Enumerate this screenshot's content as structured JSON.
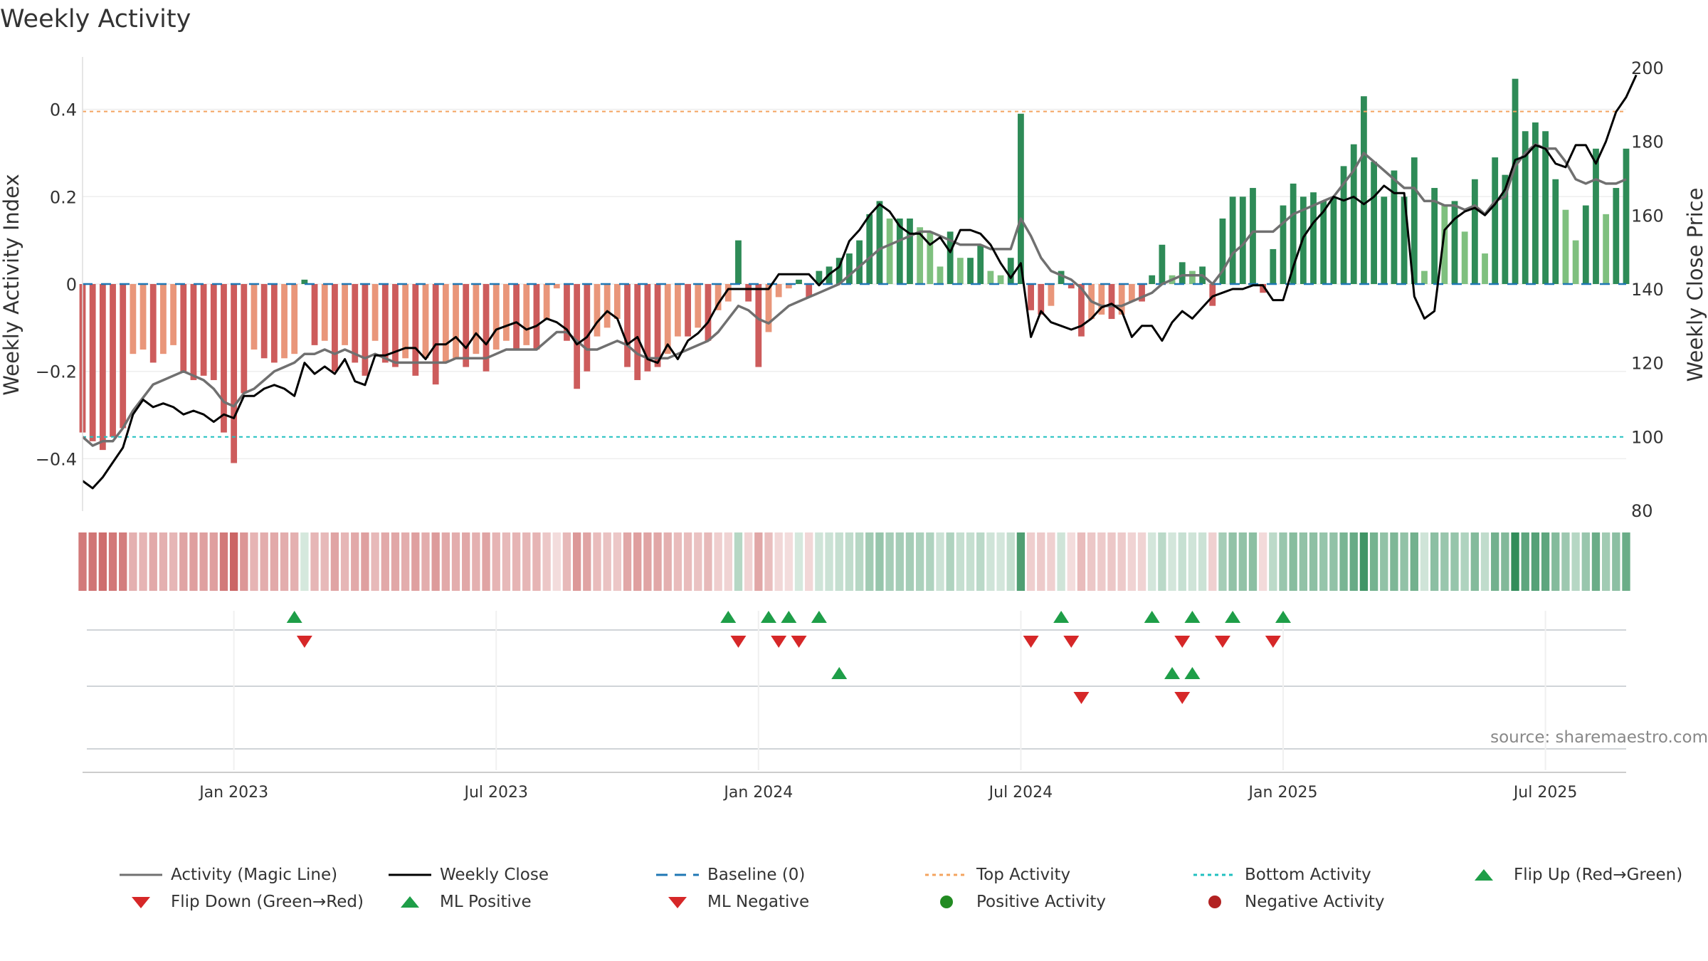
{
  "chart_data": {
    "type": "bar",
    "title": "Weekly Activity",
    "ylabel": "Weekly Activity Index",
    "ylabel_right": "Weekly Close Price",
    "ylim": [
      -0.52,
      0.52
    ],
    "ylim_right": [
      80,
      200
    ],
    "yticks": [
      {
        "v": 0.4,
        "label": "0.4"
      },
      {
        "v": 0.2,
        "label": "0.2"
      },
      {
        "v": 0,
        "label": "0"
      },
      {
        "v": -0.2,
        "label": "−0.2"
      },
      {
        "v": -0.4,
        "label": "−0.4"
      }
    ],
    "yticks_right": [
      {
        "v": 200,
        "label": "200"
      },
      {
        "v": 180,
        "label": "180"
      },
      {
        "v": 160,
        "label": "160"
      },
      {
        "v": 140,
        "label": "140"
      },
      {
        "v": 120,
        "label": "120"
      },
      {
        "v": 100,
        "label": "100"
      },
      {
        "v": 80,
        "label": "80"
      }
    ],
    "x_range_weeks": [
      0,
      153
    ],
    "xticks": [
      {
        "week": 15,
        "label": "Jan 2023"
      },
      {
        "week": 41,
        "label": "Jul 2023"
      },
      {
        "week": 67,
        "label": "Jan 2024"
      },
      {
        "week": 93,
        "label": "Jul 2024"
      },
      {
        "week": 119,
        "label": "Jan 2025"
      },
      {
        "week": 145,
        "label": "Jul 2025"
      }
    ],
    "top_activity": 0.395,
    "bottom_activity": -0.35,
    "baseline": 0,
    "activity": [
      -0.34,
      -0.36,
      -0.38,
      -0.35,
      -0.33,
      -0.16,
      -0.15,
      -0.18,
      -0.16,
      -0.14,
      -0.2,
      -0.22,
      -0.21,
      -0.22,
      -0.34,
      -0.41,
      -0.25,
      -0.15,
      -0.17,
      -0.18,
      -0.17,
      -0.16,
      0.01,
      -0.14,
      -0.13,
      -0.2,
      -0.14,
      -0.18,
      -0.21,
      -0.13,
      -0.18,
      -0.19,
      -0.17,
      -0.21,
      -0.17,
      -0.23,
      -0.18,
      -0.17,
      -0.19,
      -0.16,
      -0.2,
      -0.15,
      -0.13,
      -0.15,
      -0.14,
      -0.15,
      -0.08,
      -0.01,
      -0.13,
      -0.24,
      -0.2,
      -0.12,
      -0.1,
      -0.08,
      -0.19,
      -0.22,
      -0.2,
      -0.19,
      -0.16,
      -0.12,
      -0.12,
      -0.1,
      -0.13,
      -0.06,
      -0.04,
      0.1,
      -0.04,
      -0.19,
      -0.11,
      -0.03,
      -0.01,
      0.01,
      -0.03,
      0.03,
      0.04,
      0.06,
      0.07,
      0.1,
      0.16,
      0.19,
      0.15,
      0.15,
      0.15,
      0.13,
      0.12,
      0.04,
      0.12,
      0.06,
      0.06,
      0.09,
      0.03,
      0.02,
      0.06,
      0.39,
      -0.06,
      -0.07,
      -0.05,
      0.03,
      -0.01,
      -0.12,
      -0.08,
      -0.07,
      -0.08,
      -0.07,
      -0.04,
      -0.04,
      0.02,
      0.09,
      0.02,
      0.05,
      0.03,
      0.04,
      -0.05,
      0.15,
      0.2,
      0.2,
      0.22,
      -0.02,
      0.08,
      0.18,
      0.23,
      0.2,
      0.21,
      0.19,
      0.2,
      0.27,
      0.32,
      0.43,
      0.28,
      0.2,
      0.26,
      0.2,
      0.29,
      0.03,
      0.22,
      0.18,
      0.19,
      0.12,
      0.24,
      0.07,
      0.29,
      0.25,
      0.47,
      0.35,
      0.37,
      0.35,
      0.24,
      0.17,
      0.1,
      0.18,
      0.31,
      0.16,
      0.22,
      0.31
    ],
    "magic_line": [
      -0.35,
      -0.37,
      -0.36,
      -0.36,
      -0.33,
      -0.29,
      -0.26,
      -0.23,
      -0.22,
      -0.21,
      -0.2,
      -0.21,
      -0.22,
      -0.24,
      -0.27,
      -0.28,
      -0.25,
      -0.24,
      -0.22,
      -0.2,
      -0.19,
      -0.18,
      -0.16,
      -0.16,
      -0.15,
      -0.16,
      -0.15,
      -0.16,
      -0.17,
      -0.16,
      -0.17,
      -0.18,
      -0.18,
      -0.18,
      -0.18,
      -0.18,
      -0.18,
      -0.17,
      -0.17,
      -0.17,
      -0.17,
      -0.16,
      -0.15,
      -0.15,
      -0.15,
      -0.15,
      -0.13,
      -0.11,
      -0.11,
      -0.13,
      -0.15,
      -0.15,
      -0.14,
      -0.13,
      -0.14,
      -0.16,
      -0.17,
      -0.17,
      -0.17,
      -0.16,
      -0.15,
      -0.14,
      -0.13,
      -0.11,
      -0.08,
      -0.05,
      -0.06,
      -0.08,
      -0.09,
      -0.07,
      -0.05,
      -0.04,
      -0.03,
      -0.02,
      -0.01,
      0.0,
      0.02,
      0.04,
      0.06,
      0.08,
      0.09,
      0.1,
      0.11,
      0.12,
      0.12,
      0.11,
      0.1,
      0.09,
      0.09,
      0.09,
      0.08,
      0.08,
      0.08,
      0.15,
      0.11,
      0.06,
      0.03,
      0.02,
      0.01,
      -0.01,
      -0.04,
      -0.05,
      -0.05,
      -0.05,
      -0.04,
      -0.03,
      -0.02,
      0.0,
      0.01,
      0.02,
      0.02,
      0.02,
      0.0,
      0.03,
      0.07,
      0.09,
      0.12,
      0.12,
      0.12,
      0.14,
      0.16,
      0.17,
      0.18,
      0.19,
      0.2,
      0.23,
      0.26,
      0.3,
      0.28,
      0.26,
      0.24,
      0.22,
      0.22,
      0.19,
      0.19,
      0.18,
      0.18,
      0.17,
      0.18,
      0.16,
      0.19,
      0.2,
      0.27,
      0.3,
      0.32,
      0.31,
      0.31,
      0.28,
      0.24,
      0.23,
      0.24,
      0.23,
      0.23,
      0.24
    ],
    "weekly_close": [
      88,
      86,
      89,
      93,
      97,
      106,
      110,
      108,
      109,
      108,
      106,
      107,
      106,
      104,
      106,
      105,
      111,
      111,
      113,
      114,
      113,
      111,
      120,
      117,
      119,
      117,
      121,
      115,
      114,
      122,
      122,
      123,
      124,
      124,
      121,
      125,
      125,
      127,
      124,
      128,
      125,
      129,
      130,
      131,
      129,
      130,
      132,
      131,
      129,
      125,
      127,
      131,
      134,
      132,
      125,
      127,
      121,
      120,
      125,
      121,
      126,
      128,
      131,
      136,
      140,
      140,
      140,
      140,
      140,
      144,
      144,
      144,
      144,
      141,
      144,
      146,
      153,
      156,
      160,
      163,
      161,
      157,
      155,
      155,
      152,
      154,
      150,
      156,
      156,
      155,
      152,
      147,
      143,
      147,
      127,
      134,
      131,
      130,
      129,
      130,
      132,
      135,
      136,
      134,
      127,
      130,
      130,
      126,
      131,
      134,
      132,
      135,
      138,
      139,
      140,
      140,
      141,
      141,
      137,
      137,
      146,
      154,
      158,
      161,
      165,
      164,
      165,
      163,
      165,
      168,
      166,
      166,
      138,
      132,
      134,
      156,
      159,
      161,
      162,
      160,
      163,
      167,
      175,
      176,
      179,
      178,
      174,
      173,
      179,
      179,
      174,
      180,
      188,
      192,
      198
    ],
    "activity_strip": [
      -0.34,
      -0.36,
      -0.38,
      -0.35,
      -0.33,
      -0.16,
      -0.15,
      -0.18,
      -0.16,
      -0.14,
      -0.2,
      -0.22,
      -0.21,
      -0.22,
      -0.34,
      -0.41,
      -0.25,
      -0.15,
      -0.17,
      -0.18,
      -0.17,
      -0.16,
      0.01,
      -0.14,
      -0.13,
      -0.2,
      -0.14,
      -0.18,
      -0.21,
      -0.13,
      -0.18,
      -0.19,
      -0.17,
      -0.21,
      -0.17,
      -0.23,
      -0.18,
      -0.17,
      -0.19,
      -0.16,
      -0.2,
      -0.15,
      -0.13,
      -0.15,
      -0.14,
      -0.15,
      -0.08,
      -0.01,
      -0.13,
      -0.24,
      -0.2,
      -0.12,
      -0.1,
      -0.08,
      -0.19,
      -0.22,
      -0.2,
      -0.19,
      -0.16,
      -0.12,
      -0.12,
      -0.1,
      -0.13,
      -0.06,
      -0.04,
      0.1,
      -0.04,
      -0.19,
      -0.11,
      -0.03,
      -0.01,
      0.01,
      -0.03,
      0.03,
      0.04,
      0.06,
      0.07,
      0.1,
      0.16,
      0.19,
      0.15,
      0.15,
      0.15,
      0.13,
      0.12,
      0.04,
      0.12,
      0.06,
      0.06,
      0.09,
      0.03,
      0.02,
      0.06,
      0.39,
      -0.06,
      -0.07,
      -0.05,
      0.03,
      -0.01,
      -0.12,
      -0.08,
      -0.07,
      -0.08,
      -0.07,
      -0.04,
      -0.04,
      0.02,
      0.09,
      0.02,
      0.05,
      0.03,
      0.04,
      -0.05,
      0.15,
      0.2,
      0.2,
      0.22,
      -0.02,
      0.08,
      0.18,
      0.23,
      0.2,
      0.21,
      0.19,
      0.2,
      0.27,
      0.32,
      0.43,
      0.28,
      0.2,
      0.26,
      0.2,
      0.29,
      0.03,
      0.22,
      0.18,
      0.19,
      0.12,
      0.24,
      0.07,
      0.29,
      0.25,
      0.47,
      0.35,
      0.37,
      0.35,
      0.24,
      0.17,
      0.1,
      0.18,
      0.31,
      0.16,
      0.22,
      0.31
    ],
    "flip_up_weeks": [
      21,
      64,
      68,
      70,
      73,
      97,
      106,
      110,
      114,
      119
    ],
    "flip_down_weeks": [
      22,
      65,
      69,
      71,
      94,
      98,
      109,
      113,
      118
    ],
    "ml_positive_weeks": [
      75,
      108,
      110
    ],
    "ml_negative_weeks": [
      99,
      109
    ],
    "source": "source: sharemaestro.com",
    "colors": {
      "pos_strong": "#2e8b57",
      "pos_light": "#7fc07f",
      "neg_strong": "#cd5c5c",
      "neg_light": "#e9967a",
      "magic_line": "#707070",
      "close": "#000000",
      "baseline": "#1f77b4",
      "top": "#f4a460",
      "bottom": "#20c0c0",
      "marker_up": "#1e9e48",
      "marker_down": "#d62728",
      "dot_pos": "#228b22",
      "dot_neg": "#b22222"
    }
  },
  "legend": {
    "magic_line": "Activity (Magic Line)",
    "weekly_close": "Weekly Close",
    "baseline": "Baseline (0)",
    "top_activity": "Top Activity",
    "bottom_activity": "Bottom Activity",
    "flip_up": "Flip Up (Red→Green)",
    "flip_down": "Flip Down (Green→Red)",
    "ml_positive": "ML Positive",
    "ml_negative": "ML Negative",
    "positive_activity": "Positive Activity",
    "negative_activity": "Negative Activity"
  }
}
